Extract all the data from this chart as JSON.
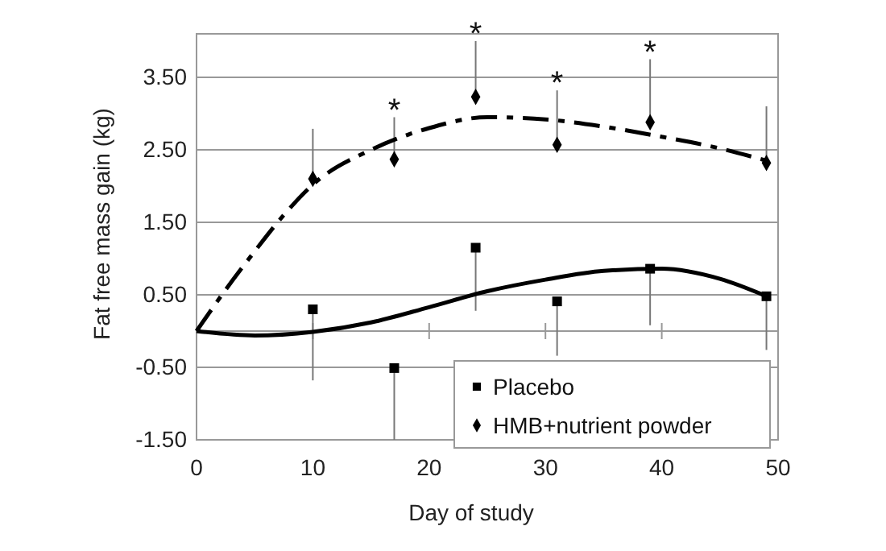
{
  "chart_data": {
    "type": "scatter",
    "xlabel": "Day of study",
    "ylabel": "Fat free mass gain (kg)",
    "xlim": [
      0,
      50
    ],
    "xticks": [
      0,
      10,
      20,
      30,
      40,
      50
    ],
    "ylim": [
      -1.5,
      4.1
    ],
    "yticks": [
      {
        "value": 3.5,
        "label": "3.50"
      },
      {
        "value": 2.5,
        "label": "2.50"
      },
      {
        "value": 1.5,
        "label": "1.50"
      },
      {
        "value": 0.5,
        "label": "0.50"
      },
      {
        "value": -0.5,
        "label": "-0.50"
      },
      {
        "value": -1.5,
        "label": "-1.50"
      }
    ],
    "grid": "y",
    "legend": "bottom right",
    "ref_lines": [
      {
        "axis": "y",
        "value": 0
      }
    ],
    "series": [
      {
        "name": "Placebo",
        "marker": "square",
        "color": "#000000",
        "x": [
          10,
          17,
          24,
          31,
          39,
          49
        ],
        "values": [
          0.3,
          -0.51,
          1.15,
          0.41,
          0.86,
          0.48
        ],
        "errors": [
          [
            -0.68,
            0.3
          ],
          [
            -1.5,
            -0.51
          ],
          [
            0.28,
            1.15
          ],
          [
            -0.34,
            0.41
          ],
          [
            0.08,
            0.86
          ],
          [
            -0.26,
            0.48
          ]
        ]
      },
      {
        "name": "HMB+nutrient powder",
        "marker": "diamond",
        "color": "#000000",
        "x": [
          10,
          17,
          24,
          31,
          39,
          49
        ],
        "values": [
          2.1,
          2.37,
          3.23,
          2.57,
          2.88,
          2.32
        ],
        "errors": [
          [
            2.1,
            2.79
          ],
          [
            2.37,
            2.95
          ],
          [
            3.23,
            4.0
          ],
          [
            2.57,
            3.32
          ],
          [
            2.88,
            3.75
          ],
          [
            2.32,
            3.1
          ]
        ]
      },
      {
        "type": "line",
        "line_style": "solid",
        "color": "#000000",
        "x": [
          0,
          5,
          10,
          15,
          20,
          25,
          30,
          35,
          40,
          45,
          49
        ],
        "values": [
          0,
          -0.06,
          -0.01,
          0.12,
          0.33,
          0.55,
          0.71,
          0.83,
          0.86,
          0.72,
          0.48
        ]
      },
      {
        "type": "line",
        "line_style": "dashed",
        "color": "#000000",
        "x": [
          0,
          2.5,
          5,
          7.5,
          10,
          15,
          20,
          25,
          30,
          35,
          40,
          45,
          49
        ],
        "values": [
          0,
          0.57,
          1.1,
          1.6,
          2.02,
          2.5,
          2.8,
          2.95,
          2.92,
          2.82,
          2.68,
          2.52,
          2.35
        ]
      }
    ],
    "annotations": [
      {
        "text": "*",
        "x": 17,
        "y": 2.95
      },
      {
        "text": "*",
        "x": 24,
        "y": 4.0
      },
      {
        "text": "*",
        "x": 31,
        "y": 3.32
      },
      {
        "text": "*",
        "x": 39,
        "y": 3.75
      }
    ]
  }
}
